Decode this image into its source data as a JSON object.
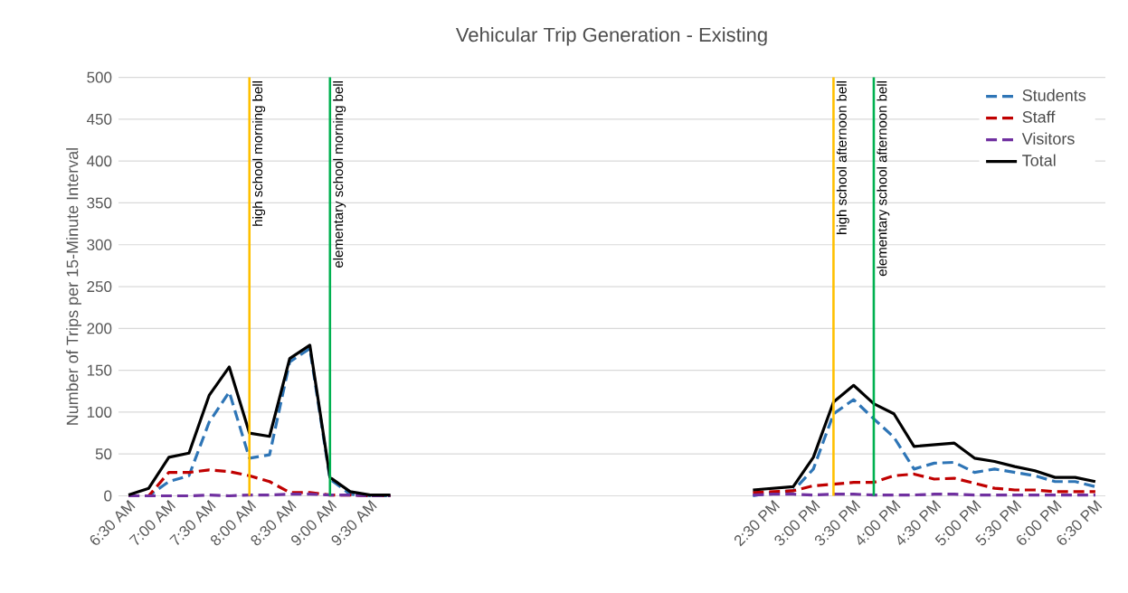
{
  "chart_data": {
    "type": "line",
    "title": "Vehicular Trip Generation - Existing",
    "ylabel": "Number of Trips per 15-Minute Interval",
    "x": [
      6.5,
      6.75,
      7.0,
      7.25,
      7.5,
      7.75,
      8.0,
      8.25,
      8.5,
      8.75,
      9.0,
      9.25,
      9.5,
      9.75,
      10.0,
      10.25,
      10.5,
      10.75,
      11.0,
      11.25,
      11.5,
      11.75,
      12.0,
      12.25,
      12.5,
      12.75,
      13.0,
      13.25,
      13.5,
      13.75,
      14.0,
      14.25,
      14.5,
      14.75,
      15.0,
      15.25,
      15.5,
      15.75,
      16.0,
      16.25,
      16.5,
      16.75,
      17.0,
      17.25,
      17.5,
      17.75,
      18.0,
      18.25,
      18.5
    ],
    "xlim": [
      6.375,
      18.625
    ],
    "xticks": [
      {
        "value": 6.5,
        "label": "6:30 AM"
      },
      {
        "value": 7.0,
        "label": "7:00 AM"
      },
      {
        "value": 7.5,
        "label": "7:30 AM"
      },
      {
        "value": 8.0,
        "label": "8:00 AM"
      },
      {
        "value": 8.5,
        "label": "8:30 AM"
      },
      {
        "value": 9.0,
        "label": "9:00 AM"
      },
      {
        "value": 9.5,
        "label": "9:30 AM"
      },
      {
        "value": 14.5,
        "label": "2:30 PM"
      },
      {
        "value": 15.0,
        "label": "3:00 PM"
      },
      {
        "value": 15.5,
        "label": "3:30 PM"
      },
      {
        "value": 16.0,
        "label": "4:00 PM"
      },
      {
        "value": 16.5,
        "label": "4:30 PM"
      },
      {
        "value": 17.0,
        "label": "5:00 PM"
      },
      {
        "value": 17.5,
        "label": "5:30 PM"
      },
      {
        "value": 18.0,
        "label": "6:00 PM"
      },
      {
        "value": 18.5,
        "label": "6:30 PM"
      }
    ],
    "ylim": [
      0,
      500
    ],
    "yticks": [
      0,
      50,
      100,
      150,
      200,
      250,
      300,
      350,
      400,
      450,
      500
    ],
    "grid": "y",
    "legend": "top right",
    "series": [
      {
        "name": "Students",
        "color": "#2e75b6",
        "line_style": "dashed",
        "values": [
          0,
          0,
          17,
          24,
          88,
          124,
          45,
          49,
          160,
          176,
          20,
          2,
          0,
          0,
          null,
          null,
          null,
          null,
          null,
          null,
          null,
          null,
          null,
          null,
          null,
          null,
          null,
          null,
          null,
          null,
          null,
          0,
          4,
          6,
          32,
          98,
          115,
          92,
          70,
          32,
          39,
          40,
          28,
          32,
          28,
          24,
          17,
          17,
          11
        ]
      },
      {
        "name": "Staff",
        "color": "#c00000",
        "line_style": "dashed",
        "values": [
          0,
          0,
          28,
          28,
          31,
          29,
          24,
          17,
          4,
          4,
          1,
          1,
          0,
          0,
          null,
          null,
          null,
          null,
          null,
          null,
          null,
          null,
          null,
          null,
          null,
          null,
          null,
          null,
          null,
          null,
          null,
          4,
          5,
          6,
          12,
          14,
          16,
          16,
          24,
          26,
          20,
          21,
          15,
          9,
          7,
          7,
          5,
          5,
          5
        ]
      },
      {
        "name": "Visitors",
        "color": "#7030a0",
        "line_style": "dashed",
        "values": [
          0,
          0,
          0,
          0,
          1,
          0,
          1,
          1,
          2,
          2,
          1,
          1,
          0,
          0,
          null,
          null,
          null,
          null,
          null,
          null,
          null,
          null,
          null,
          null,
          null,
          null,
          null,
          null,
          null,
          null,
          null,
          1,
          2,
          2,
          1,
          2,
          2,
          1,
          1,
          1,
          2,
          2,
          1,
          1,
          1,
          1,
          1,
          1,
          1
        ]
      },
      {
        "name": "Total",
        "color": "#000000",
        "line_style": "solid",
        "values": [
          1,
          9,
          46,
          51,
          120,
          154,
          75,
          71,
          164,
          180,
          22,
          5,
          1,
          1,
          null,
          null,
          null,
          null,
          null,
          null,
          null,
          null,
          null,
          null,
          null,
          null,
          null,
          null,
          null,
          null,
          null,
          7,
          9,
          11,
          46,
          112,
          132,
          110,
          98,
          59,
          61,
          63,
          45,
          41,
          35,
          30,
          22,
          22,
          17
        ]
      }
    ],
    "ref_lines": [
      {
        "axis": "x",
        "value": 8.0,
        "label": "high school morning bell",
        "color": "#ffc000"
      },
      {
        "axis": "x",
        "value": 9.0,
        "label": "elementary school morning bell",
        "color": "#00b050"
      },
      {
        "axis": "x",
        "value": 15.25,
        "label": "high school afternoon bell",
        "color": "#ffc000"
      },
      {
        "axis": "x",
        "value": 15.75,
        "label": "elementary school afternoon bell",
        "color": "#00b050"
      }
    ]
  }
}
